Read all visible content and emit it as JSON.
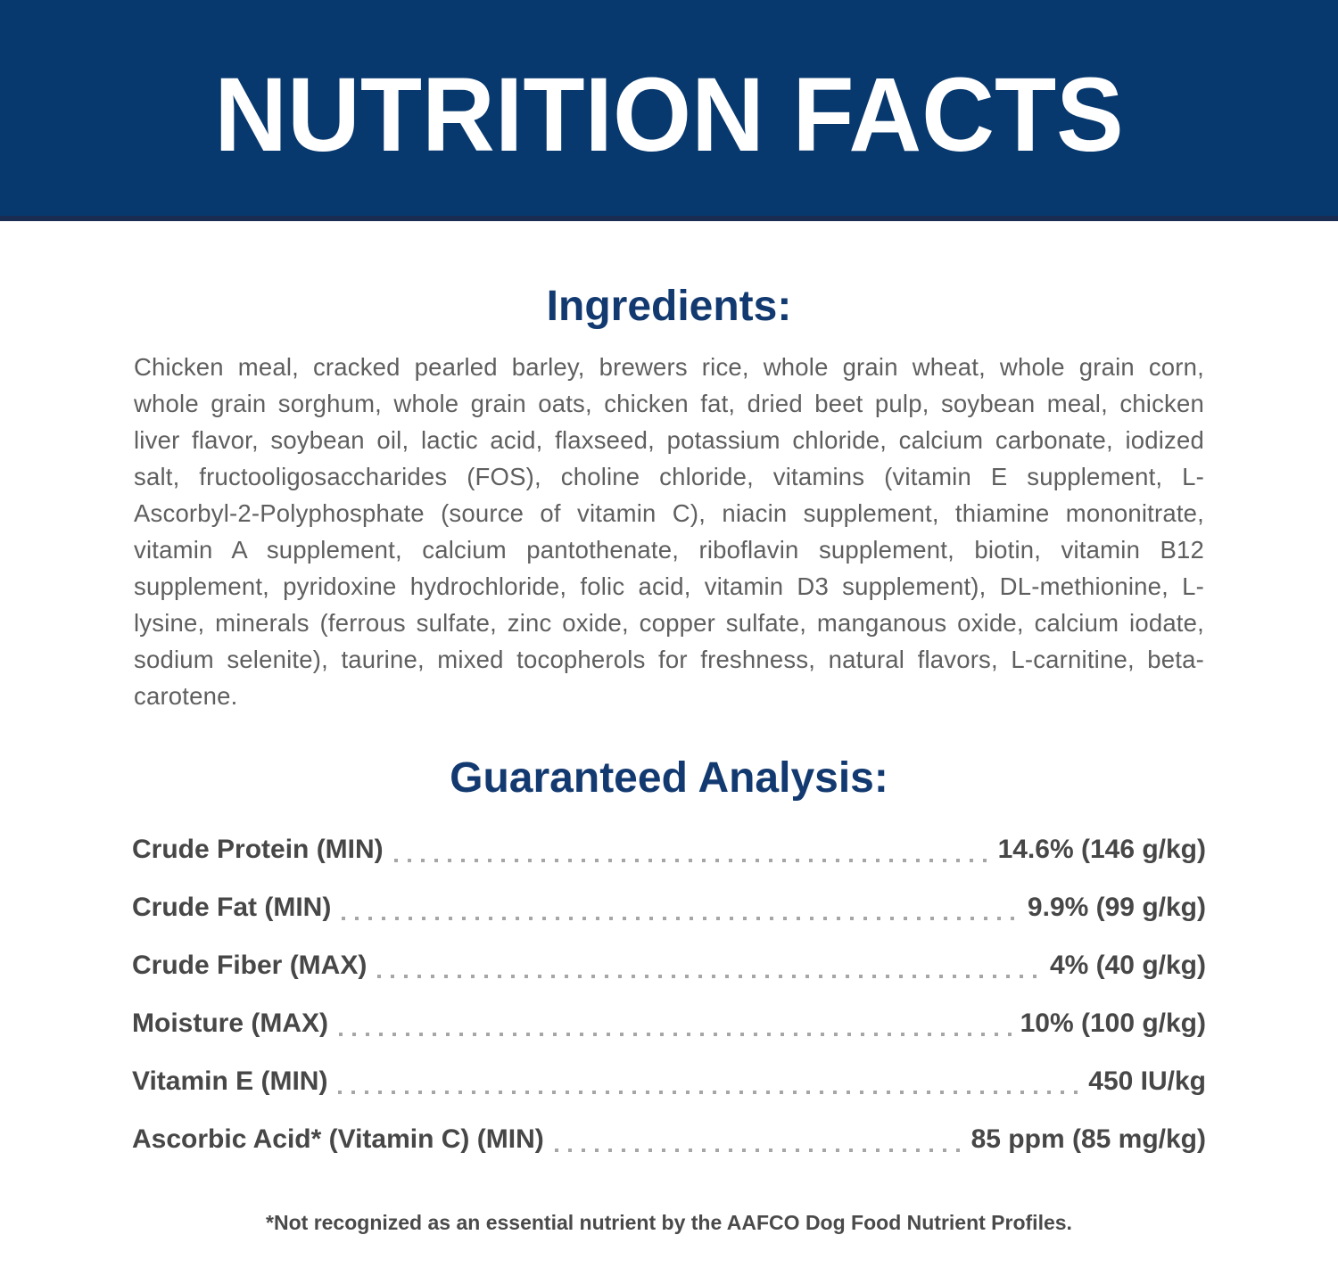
{
  "header": {
    "title": "NUTRITION FACTS"
  },
  "ingredients": {
    "heading": "Ingredients:",
    "text": "Chicken meal, cracked pearled barley, brewers rice, whole grain wheat, whole grain corn, whole grain sorghum, whole grain oats, chicken fat, dried beet pulp, soybean meal, chicken liver flavor, soybean oil, lactic acid, flaxseed, potassium chloride, calcium carbonate, iodized salt, fructooligosaccharides (FOS), choline chloride, vitamins (vitamin E supplement, L-Ascorbyl-2-Polyphosphate (source of vitamin C), niacin supplement, thiamine mononitrate, vitamin A supplement, calcium pantothenate, riboflavin supplement, biotin, vitamin B12 supplement, pyridoxine hydrochloride, folic acid, vitamin D3 supplement), DL-methionine, L-lysine, minerals (ferrous sulfate, zinc oxide, copper sulfate, manganous oxide, calcium iodate, sodium selenite), taurine, mixed tocopherols for freshness, natural flavors, L-carnitine, beta-carotene."
  },
  "analysis": {
    "heading": "Guaranteed Analysis:",
    "rows": [
      {
        "label": "Crude Protein (MIN)",
        "value": "14.6% (146 g/kg)"
      },
      {
        "label": "Crude Fat (MIN)",
        "value": "9.9% (99 g/kg)"
      },
      {
        "label": "Crude Fiber (MAX)",
        "value": "4% (40 g/kg)"
      },
      {
        "label": "Moisture (MAX)",
        "value": "10% (100 g/kg)"
      },
      {
        "label": "Vitamin E (MIN)",
        "value": "450 IU/kg"
      },
      {
        "label": "Ascorbic Acid* (Vitamin C) (MIN)",
        "value": "85 ppm (85 mg/kg)"
      }
    ]
  },
  "footnote": "*Not recognized as an essential nutrient by the AAFCO Dog Food Nutrient Profiles.",
  "colors": {
    "band_background": "#07386e",
    "band_edge": "#1b2c52",
    "heading_navy": "#133a70",
    "body_gray": "#5f5f5f",
    "row_gray": "#474747",
    "dot_gray": "#a6a6a6",
    "title_white": "#ffffff"
  }
}
